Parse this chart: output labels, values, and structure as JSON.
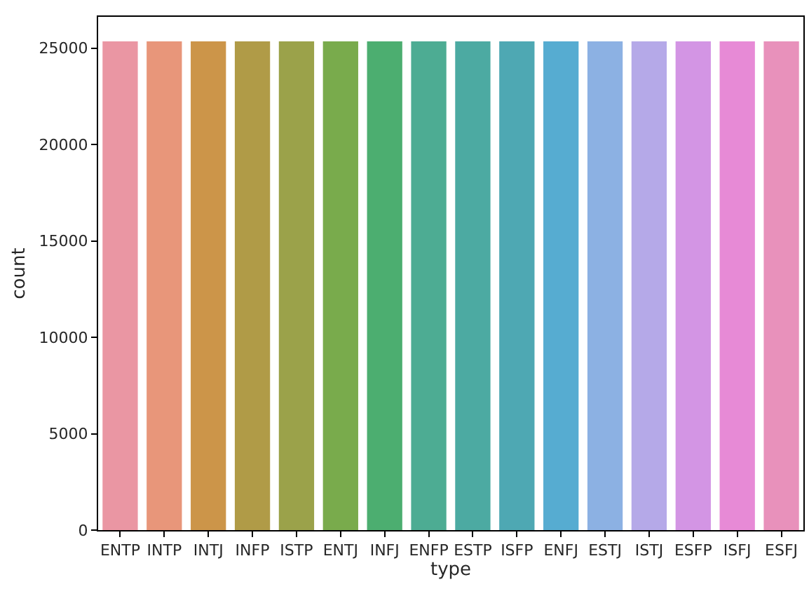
{
  "chart_data": {
    "type": "bar",
    "xlabel": "type",
    "ylabel": "count",
    "categories": [
      "ENTP",
      "INTP",
      "INTJ",
      "INFP",
      "ISTP",
      "ENTJ",
      "INFJ",
      "ENFP",
      "ESTP",
      "ISFP",
      "ENFJ",
      "ESTJ",
      "ISTJ",
      "ESFP",
      "ISFJ",
      "ESFJ"
    ],
    "values": [
      25350,
      25350,
      25350,
      25350,
      25350,
      25350,
      25350,
      25350,
      25350,
      25350,
      25350,
      25350,
      25350,
      25350,
      25350,
      25350
    ],
    "colors": [
      "#ea96a3",
      "#e8967a",
      "#cc9549",
      "#b09b47",
      "#9ba24a",
      "#79ab4c",
      "#4cae70",
      "#4dac93",
      "#4caaa2",
      "#4ea8b3",
      "#56acd1",
      "#8cb1e3",
      "#b5a9e8",
      "#d395e4",
      "#e78ad6",
      "#e891bb"
    ],
    "ylim": [
      0,
      26620
    ],
    "yticks": [
      0,
      5000,
      10000,
      15000,
      20000,
      25000
    ],
    "grid": false
  }
}
